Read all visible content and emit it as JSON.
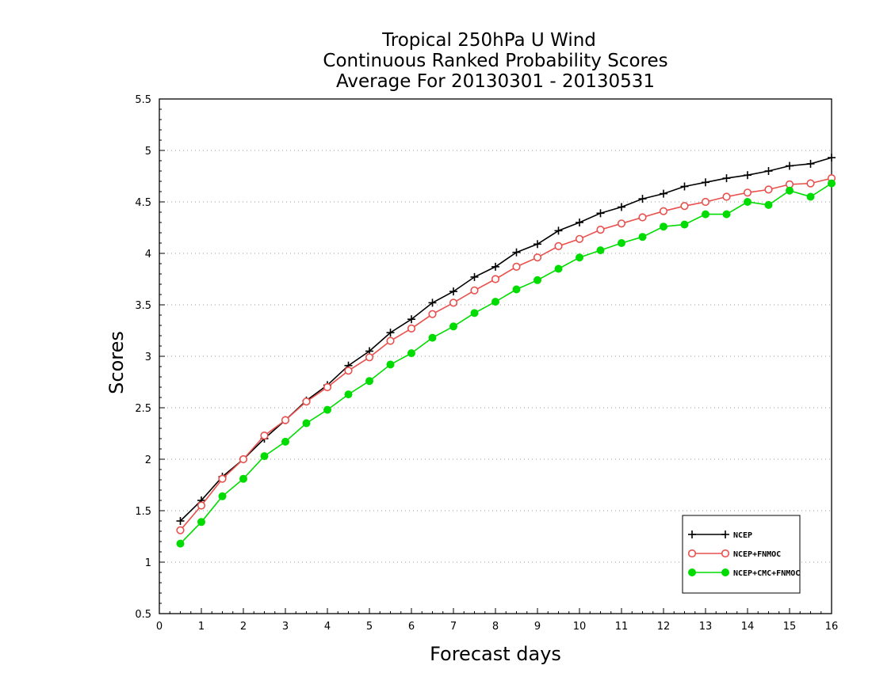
{
  "chart_data": {
    "type": "line",
    "title": [
      "Tropical 250hPa U Wind",
      "Continuous Ranked Probability Scores",
      "Average For 20130301 - 20130531"
    ],
    "xlabel": "Forecast days",
    "ylabel": "Scores",
    "xlim": [
      0,
      16
    ],
    "ylim": [
      0.5,
      5.5
    ],
    "xticks": [
      "0",
      "1",
      "2",
      "3",
      "4",
      "5",
      "6",
      "7",
      "8",
      "9",
      "10",
      "11",
      "12",
      "13",
      "14",
      "15",
      "16"
    ],
    "yticks": [
      "0.5",
      "1",
      "1.5",
      "2",
      "2.5",
      "3",
      "3.5",
      "4",
      "4.5",
      "5",
      "5.5"
    ],
    "grid": "horizontal dotted",
    "legend_position": "bottom-right",
    "x": [
      0.5,
      1,
      1.5,
      2,
      2.5,
      3,
      3.5,
      4,
      4.5,
      5,
      5.5,
      6,
      6.5,
      7,
      7.5,
      8,
      8.5,
      9,
      9.5,
      10,
      10.5,
      11,
      11.5,
      12,
      12.5,
      13,
      13.5,
      14,
      14.5,
      15,
      15.5,
      16
    ],
    "series": [
      {
        "name": "NCEP",
        "color": "#000000",
        "marker": "plus",
        "values": [
          1.4,
          1.6,
          1.83,
          2.0,
          2.2,
          2.38,
          2.57,
          2.72,
          2.91,
          3.05,
          3.23,
          3.36,
          3.52,
          3.63,
          3.77,
          3.87,
          4.01,
          4.09,
          4.22,
          4.3,
          4.39,
          4.45,
          4.53,
          4.58,
          4.65,
          4.69,
          4.73,
          4.76,
          4.8,
          4.85,
          4.87,
          4.93
        ]
      },
      {
        "name": "NCEP+FNMOC",
        "color": "#e8504d",
        "marker": "open-circle",
        "values": [
          1.31,
          1.55,
          1.81,
          2.0,
          2.23,
          2.38,
          2.56,
          2.7,
          2.86,
          2.99,
          3.15,
          3.27,
          3.41,
          3.52,
          3.64,
          3.75,
          3.87,
          3.96,
          4.07,
          4.14,
          4.23,
          4.29,
          4.35,
          4.41,
          4.46,
          4.5,
          4.55,
          4.59,
          4.62,
          4.67,
          4.68,
          4.73
        ]
      },
      {
        "name": "NCEP+CMC+FNMOC",
        "color": "#00dc00",
        "marker": "filled-circle",
        "values": [
          1.18,
          1.39,
          1.64,
          1.81,
          2.03,
          2.17,
          2.35,
          2.48,
          2.63,
          2.76,
          2.92,
          3.03,
          3.18,
          3.29,
          3.42,
          3.53,
          3.65,
          3.74,
          3.85,
          3.96,
          4.03,
          4.1,
          4.16,
          4.26,
          4.28,
          4.38,
          4.38,
          4.5,
          4.47,
          4.61,
          4.55,
          4.68
        ]
      }
    ]
  }
}
